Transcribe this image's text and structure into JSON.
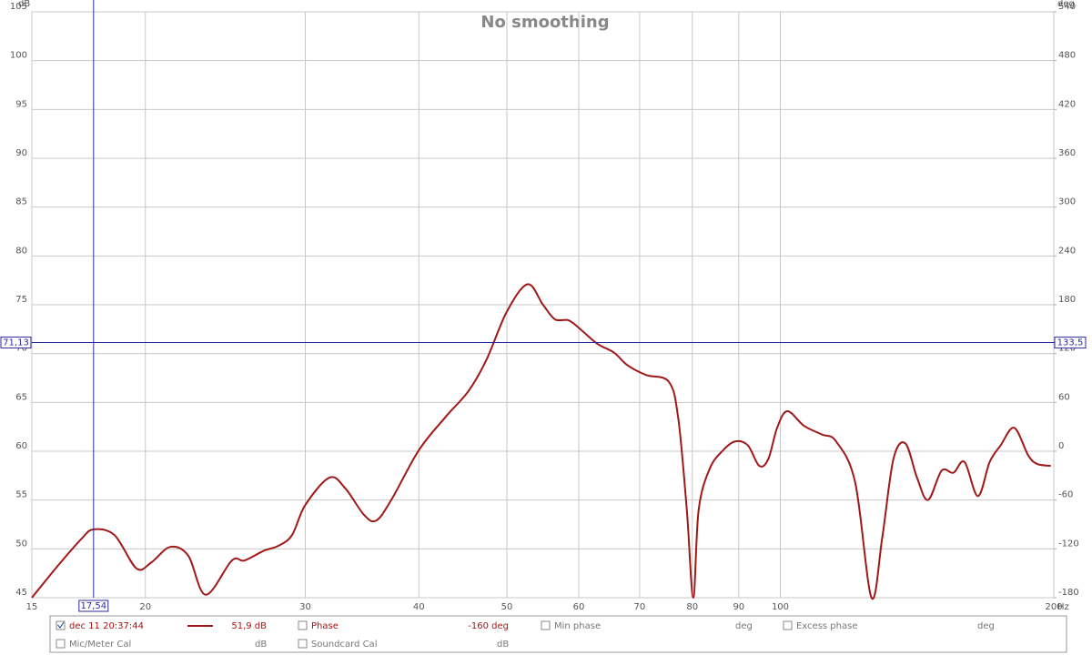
{
  "chart_data": {
    "type": "line",
    "title": "No smoothing",
    "y_label": "dB",
    "y2_label": "deg",
    "x_unit": "Hz",
    "xscale": "log",
    "grid": true,
    "xlim": [
      15,
      200
    ],
    "ylim": [
      45,
      105
    ],
    "y2lim": [
      -180,
      540
    ],
    "xticks": [
      15,
      20,
      30,
      40,
      50,
      60,
      70,
      80,
      90,
      100,
      200
    ],
    "yticks": [
      45,
      50,
      55,
      60,
      65,
      70,
      75,
      80,
      85,
      90,
      95,
      100,
      105
    ],
    "y2ticks": [
      -180,
      -120,
      -60,
      0,
      60,
      120,
      180,
      240,
      300,
      360,
      420,
      480,
      540
    ],
    "x": [
      15,
      16,
      17,
      17.54,
      18.5,
      19.55,
      20.3,
      21.3,
      22.3,
      23.3,
      24.9,
      25.7,
      27.0,
      28.0,
      29.0,
      30.0,
      31.9,
      33.2,
      34.8,
      35.9,
      37.3,
      40,
      42.8,
      45.4,
      47.5,
      50,
      52.7,
      54.8,
      56.5,
      58.5,
      60.4,
      62.9,
      65.6,
      67.9,
      71.2,
      75.4,
      77.2,
      78.9,
      80.2,
      81.3,
      83.6,
      86.5,
      89.2,
      92.1,
      94.8,
      97,
      99.2,
      101.8,
      106.2,
      111.2,
      115.2,
      120.9,
      126,
      129.5,
      133.2,
      137.3,
      141.4,
      145.4,
      150.5,
      155.1,
      159.5,
      165,
      170,
      174.8,
      180.9,
      187.4,
      191.7,
      198.5
    ],
    "series": [
      {
        "name": "dec 11 20:37:44",
        "color": "#a01818",
        "values": [
          45,
          48.2,
          51.0,
          52,
          51.4,
          48.0,
          48.6,
          50.2,
          49.3,
          45.3,
          48.8,
          48.8,
          49.8,
          50.3,
          51.4,
          54.5,
          57.3,
          56.2,
          53.5,
          52.9,
          55.0,
          60.1,
          63.5,
          66.2,
          69.4,
          74.3,
          77.1,
          75.0,
          73.5,
          73.4,
          72.4,
          71.0,
          70.1,
          68.8,
          67.8,
          67.1,
          63.4,
          54.0,
          45,
          54.0,
          58.2,
          60.1,
          61.0,
          60.6,
          58.5,
          59.2,
          62.4,
          64.1,
          62.6,
          61.7,
          61.0,
          56.8,
          45,
          51.2,
          59.2,
          60.8,
          57.3,
          55.0,
          58.0,
          57.8,
          58.9,
          55.4,
          58.9,
          60.6,
          62.4,
          59.6,
          58.7,
          58.5
        ]
      }
    ],
    "cursor": {
      "x": {
        "value": 17.54,
        "label": "17,54"
      },
      "y": {
        "value": 71.13,
        "label": "71,13"
      },
      "y2": {
        "value": 133.5,
        "label": "133,5"
      }
    },
    "legend": {
      "readout": "51,9 dB",
      "phase": "Phase",
      "phase_readout": "-160 deg",
      "min_phase": "Min phase",
      "min_phase_unit": "deg",
      "excess_phase": "Excess phase",
      "excess_phase_unit": "deg",
      "mic_cal": "Mic/Meter Cal",
      "mic_cal_unit": "dB",
      "soundcard_cal": "Soundcard Cal",
      "soundcard_cal_unit": "dB"
    }
  }
}
